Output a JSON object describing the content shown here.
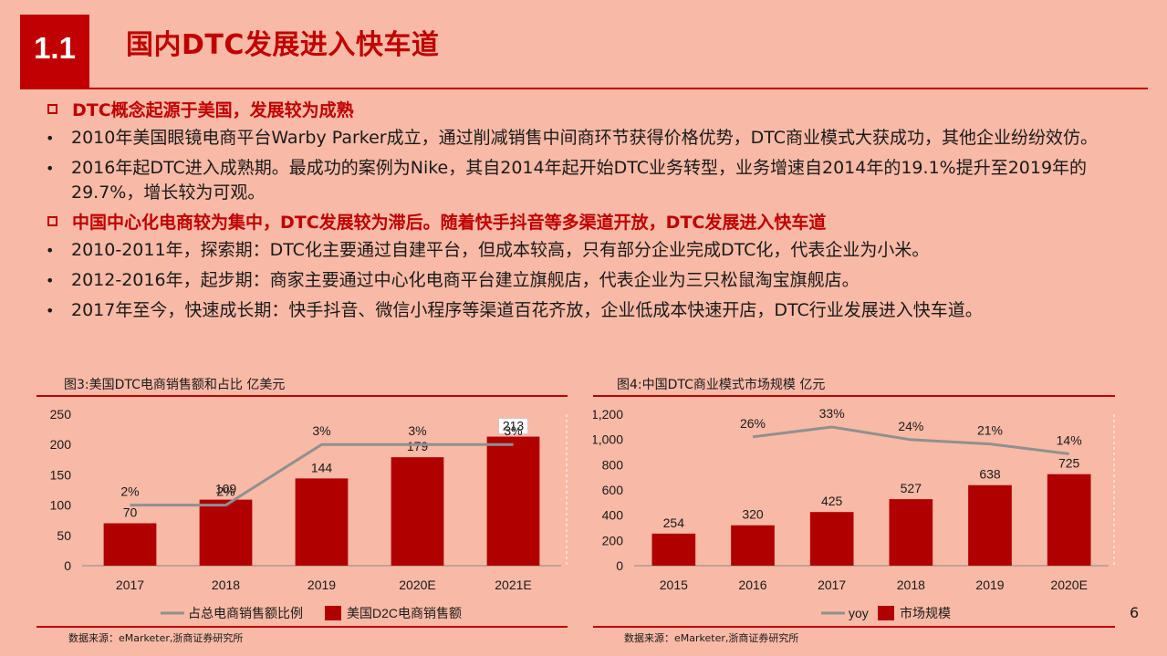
{
  "section_number": "1.1",
  "page_title": "国内DTC发展进入快车道",
  "heading1": "DTC概念起源于美国，发展较为成熟",
  "bullets1": [
    "2010年美国眼镜电商平台Warby Parker成立，通过削减销售中间商环节获得价格优势，DTC商业模式大获成功，其他企业纷纷效仿。",
    "2016年起DTC进入成熟期。最成功的案例为Nike，其自2014年起开始DTC业务转型，业务增速自2014年的19.1%提升至2019年的29.7%，增长较为可观。"
  ],
  "heading2": "中国中心化电商较为集中，DTC发展较为滞后。随着快手抖音等多渠道开放，DTC发展进入快车道",
  "bullets2": [
    "2010-2011年，探索期：DTC化主要通过自建平台，但成本较高，只有部分企业完成DTC化，代表企业为小米。",
    "2012-2016年，起步期：商家主要通过中心化电商平台建立旗舰店，代表企业为三只松鼠淘宝旗舰店。",
    "2017年至今，快速成长期：快手抖音、微信小程序等渠道百花齐放，企业低成本快速开店，DTC行业发展进入快车道。"
  ],
  "colors": {
    "accent": "#c00000",
    "bar": "#b00000",
    "line": "#909090",
    "background": "#f8b9a6"
  },
  "chart_data": [
    {
      "type": "bar",
      "title": "图3:美国DTC电商销售额和占比 亿美元",
      "categories": [
        "2017",
        "2018",
        "2019",
        "2020E",
        "2021E"
      ],
      "ylim": [
        0,
        250
      ],
      "yticks": [
        0,
        50,
        100,
        150,
        200,
        250
      ],
      "series": [
        {
          "name": "美国D2C电商销售额",
          "kind": "bar",
          "values": [
            70,
            109,
            144,
            179,
            213
          ]
        },
        {
          "name": "占总电商销售额比例",
          "kind": "line",
          "values": [
            2,
            2,
            3,
            3,
            3
          ],
          "labels": [
            "2%",
            "2%",
            "3%",
            "3%",
            "3%"
          ],
          "ylim": [
            1,
            3.5
          ]
        }
      ],
      "legend": "bottom",
      "source": "数据来源：eMarketer,浙商证券研究所"
    },
    {
      "type": "bar",
      "title": "图4:中国DTC商业模式市场规模 亿元",
      "categories": [
        "2015",
        "2016",
        "2017",
        "2018",
        "2019",
        "2020E"
      ],
      "ylim": [
        0,
        1200
      ],
      "yticks": [
        "0",
        "200",
        "400",
        "600",
        "800",
        "1,000",
        "1,200"
      ],
      "series": [
        {
          "name": "市场规模",
          "kind": "bar",
          "values": [
            254,
            320,
            425,
            527,
            638,
            725
          ]
        },
        {
          "name": "yoy",
          "kind": "line",
          "values": [
            null,
            26,
            33,
            24,
            21,
            14
          ],
          "labels": [
            "",
            "26%",
            "33%",
            "24%",
            "21%",
            "14%"
          ],
          "ylim": [
            -65,
            42
          ]
        }
      ],
      "legend": "bottom",
      "source": "数据来源：eMarketer,浙商证券研究所"
    }
  ],
  "page_number": "6"
}
